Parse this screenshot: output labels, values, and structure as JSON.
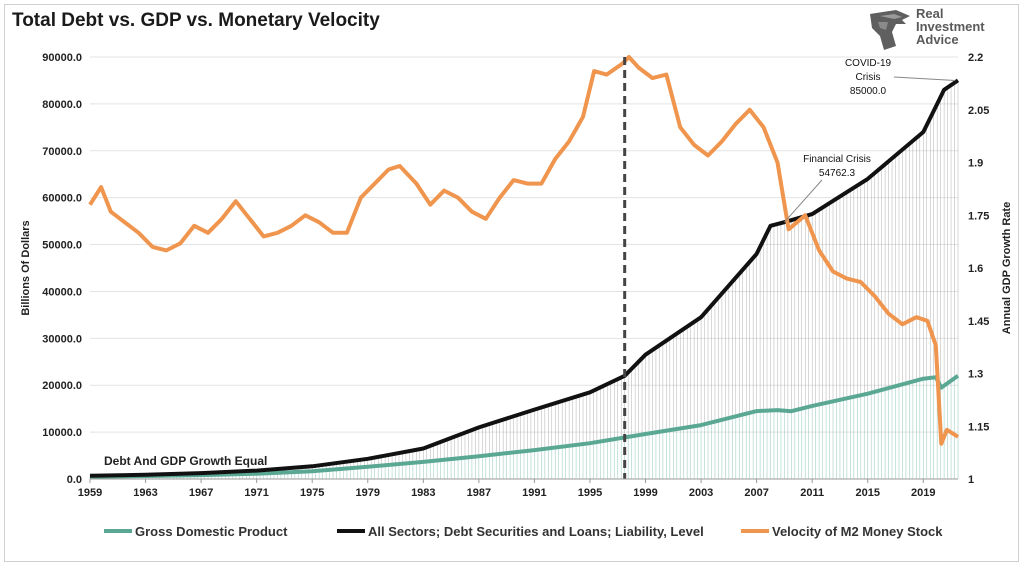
{
  "title": "Total Debt vs. GDP vs. Monetary Velocity",
  "logo": {
    "icon": "eagle-head-logo-icon",
    "line1": "Real",
    "line2": "Investment",
    "line3": "Advice"
  },
  "colors": {
    "gdp": "#5aa893",
    "debt": "#111111",
    "velocity": "#f0954e",
    "grid": "#e3e3e3",
    "dashed": "#444444"
  },
  "chart_data": {
    "type": "line",
    "title": "Total Debt vs. GDP vs. Monetary Velocity",
    "xlabel": "",
    "ylabel": "Billions Of Dollars",
    "ylabel_right": "Annual GDP Growth Rate",
    "xlim": [
      1959,
      2021.5
    ],
    "ylim": [
      0,
      90000
    ],
    "ylim_right": [
      1,
      2.2
    ],
    "x_ticks": [
      "1959",
      "1963",
      "1967",
      "1971",
      "1975",
      "1979",
      "1983",
      "1987",
      "1991",
      "1995",
      "1999",
      "2003",
      "2007",
      "2011",
      "2015",
      "2019"
    ],
    "y_ticks": [
      "0.0",
      "10000.0",
      "20000.0",
      "30000.0",
      "40000.0",
      "50000.0",
      "60000.0",
      "70000.0",
      "80000.0",
      "90000.0"
    ],
    "y_ticks_right": [
      "1",
      "1.15",
      "1.3",
      "1.45",
      "1.6",
      "1.75",
      "1.9",
      "2.05",
      "2.2"
    ],
    "grid": "horizontal",
    "legend_position": "bottom",
    "vertical_marker": 1997.5,
    "series": [
      {
        "name": "Gross Domestic Product",
        "axis": "left",
        "color": "#5aa893",
        "x": [
          1959,
          1963,
          1967,
          1971,
          1975,
          1979,
          1983,
          1987,
          1991,
          1995,
          1999,
          2003,
          2007,
          2008.5,
          2009.5,
          2011,
          2015,
          2019,
          2019.9,
          2020.3,
          2021.5
        ],
        "y": [
          510,
          640,
          830,
          1130,
          1660,
          2600,
          3640,
          4870,
          6160,
          7640,
          9600,
          11500,
          14480,
          14700,
          14450,
          15600,
          18200,
          21400,
          21700,
          19500,
          22000
        ]
      },
      {
        "name": "All Sectors; Debt Securities and Loans; Liability, Level",
        "axis": "left",
        "color": "#111111",
        "x": [
          1959,
          1963,
          1967,
          1971,
          1975,
          1979,
          1983,
          1987,
          1991,
          1995,
          1997.5,
          1999,
          2003,
          2007,
          2008,
          2009,
          2011,
          2015,
          2019,
          2020,
          2020.5,
          2021.5
        ],
        "y": [
          700,
          900,
          1250,
          1800,
          2700,
          4300,
          6500,
          11000,
          14800,
          18500,
          22000,
          26500,
          34500,
          48000,
          54000,
          54762.3,
          56500,
          64000,
          74000,
          80000,
          83000,
          85000
        ]
      },
      {
        "name": "Velocity of M2 Money Stock",
        "axis": "right",
        "color": "#f0954e",
        "x": [
          1959,
          1959.8,
          1960.5,
          1961.5,
          1962.5,
          1963.5,
          1964.5,
          1965.5,
          1966.5,
          1967.5,
          1968.5,
          1969.5,
          1970.3,
          1971.5,
          1972.5,
          1973.5,
          1974.5,
          1975.5,
          1976.5,
          1977.5,
          1978.5,
          1979.5,
          1980.5,
          1981.3,
          1982.5,
          1983.5,
          1984.5,
          1985.5,
          1986.5,
          1987.5,
          1988.5,
          1989.5,
          1990.5,
          1991.5,
          1992.5,
          1993.5,
          1994.5,
          1995.3,
          1996.2,
          1997.3,
          1997.8,
          1998.5,
          1999.5,
          2000.5,
          2001.5,
          2002.5,
          2003.5,
          2004.5,
          2005.5,
          2006.5,
          2007.5,
          2008.5,
          2009.3,
          2010.5,
          2011.5,
          2012.5,
          2013.5,
          2014.5,
          2015.5,
          2016.5,
          2017.5,
          2018.5,
          2019.3,
          2019.9,
          2020.3,
          2020.7,
          2021.5
        ],
        "y": [
          1.78,
          1.83,
          1.76,
          1.73,
          1.7,
          1.66,
          1.65,
          1.67,
          1.72,
          1.7,
          1.74,
          1.79,
          1.75,
          1.69,
          1.7,
          1.72,
          1.75,
          1.73,
          1.7,
          1.7,
          1.8,
          1.84,
          1.88,
          1.89,
          1.84,
          1.78,
          1.82,
          1.8,
          1.76,
          1.74,
          1.8,
          1.85,
          1.84,
          1.84,
          1.91,
          1.96,
          2.03,
          2.16,
          2.15,
          2.18,
          2.2,
          2.17,
          2.14,
          2.15,
          2.0,
          1.95,
          1.92,
          1.96,
          2.01,
          2.05,
          2.0,
          1.9,
          1.71,
          1.75,
          1.65,
          1.59,
          1.57,
          1.56,
          1.52,
          1.47,
          1.44,
          1.46,
          1.45,
          1.38,
          1.1,
          1.14,
          1.12
        ]
      }
    ],
    "annotations": [
      {
        "lines": [
          "COVID-19",
          "Crisis",
          "85000.0"
        ],
        "x": 2021.3,
        "y": 85000
      },
      {
        "lines": [
          "Financial Crisis",
          "54762.3"
        ],
        "x": 2009,
        "y": 54762.3
      },
      {
        "lines": [
          "Debt And GDP Growth Equal"
        ],
        "x": 1960,
        "y": 0
      }
    ]
  }
}
